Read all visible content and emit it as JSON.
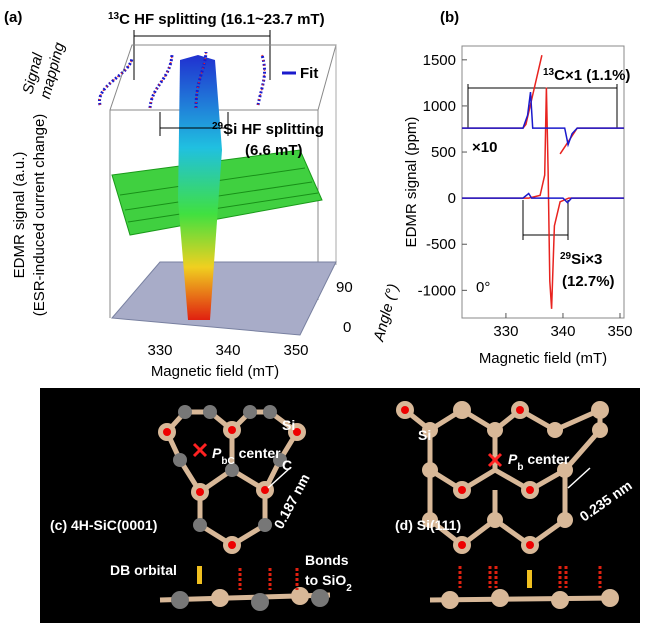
{
  "panel_a": {
    "label": "(a)",
    "c13_sup": "13",
    "c13_text": "C HF splitting (16.1~23.7 mT)",
    "signal_mapping": [
      "Signal",
      "mapping"
    ],
    "fit": "Fit",
    "si29_sup": "29",
    "si29_text": "Si HF splitting",
    "si29_value": "(6.6 mT)",
    "y_label": [
      "EDMR signal (a.u.)",
      "(ESR-induced current change)"
    ],
    "xticks": [
      "330",
      "340",
      "350"
    ],
    "x_label": "Magnetic field (mT)",
    "angle_ticks": [
      "90",
      "0"
    ],
    "angle_label": "Angle (°)"
  },
  "chart_data": {
    "type": "line",
    "panel_label": "(b)",
    "y_label": "EDMR signal (ppm)",
    "x_label": "Magnetic field (mT)",
    "xlim": [
      322.3,
      350.7
    ],
    "ylim": [
      -1300,
      1650
    ],
    "xticks": [
      330,
      340,
      350
    ],
    "yticks": [
      1500,
      1000,
      500,
      0,
      -500,
      -1000
    ],
    "annotations": {
      "c13_sup": "13",
      "c13_text": "C×1 (1.1%)",
      "x10": "×10",
      "si29_sup": "29",
      "si29_text": "Si×3",
      "si29_pct": "(12.7%)",
      "angle": "0°"
    },
    "series": [
      {
        "color": "#e8231f",
        "x": [
          322.3,
          334,
          336,
          336.8,
          337.1,
          337.4,
          337.7,
          338,
          338.5,
          339.5,
          341,
          350.7
        ],
        "values": [
          0,
          0,
          30,
          250,
          1200,
          300,
          -900,
          -1200,
          -300,
          -40,
          0,
          0
        ]
      },
      {
        "color": "#1a1acc",
        "x": [
          322.3,
          333,
          334,
          334.5,
          335,
          340,
          340.8,
          341.5,
          350.7
        ],
        "values": [
          0,
          0,
          50,
          0,
          0,
          0,
          -50,
          0,
          0
        ]
      },
      {
        "color": "#e8231f",
        "x": [
          322.3,
          333,
          333.5,
          336.3
        ],
        "values": [
          760,
          760,
          800,
          1550
        ]
      },
      {
        "color": "#e8231f",
        "x": [
          339.5,
          340.8,
          342.5,
          350.7
        ],
        "values": [
          480,
          600,
          760,
          760
        ]
      },
      {
        "color": "#1a1acc",
        "x": [
          322.3,
          333,
          333.8,
          334.3,
          334.7,
          335.5,
          340.3,
          340.9,
          341.6,
          342.5,
          350.7
        ],
        "values": [
          760,
          760,
          900,
          1150,
          760,
          760,
          760,
          580,
          700,
          760,
          760
        ]
      }
    ]
  },
  "panel_c": {
    "si": "Si",
    "p": "P",
    "p_sub": "bC",
    "center": " center",
    "c": "C",
    "distance": "0.187 nm",
    "label": "(c) 4H-SiC(0001)",
    "db": "DB orbital",
    "bonds": "Bonds",
    "to_sio": "to SiO",
    "to_sio_sub": "2"
  },
  "panel_d": {
    "si": "Si",
    "p": "P",
    "p_sub": "b",
    "center": " center",
    "distance": "0.235 nm",
    "label": "(d) Si(111)"
  }
}
